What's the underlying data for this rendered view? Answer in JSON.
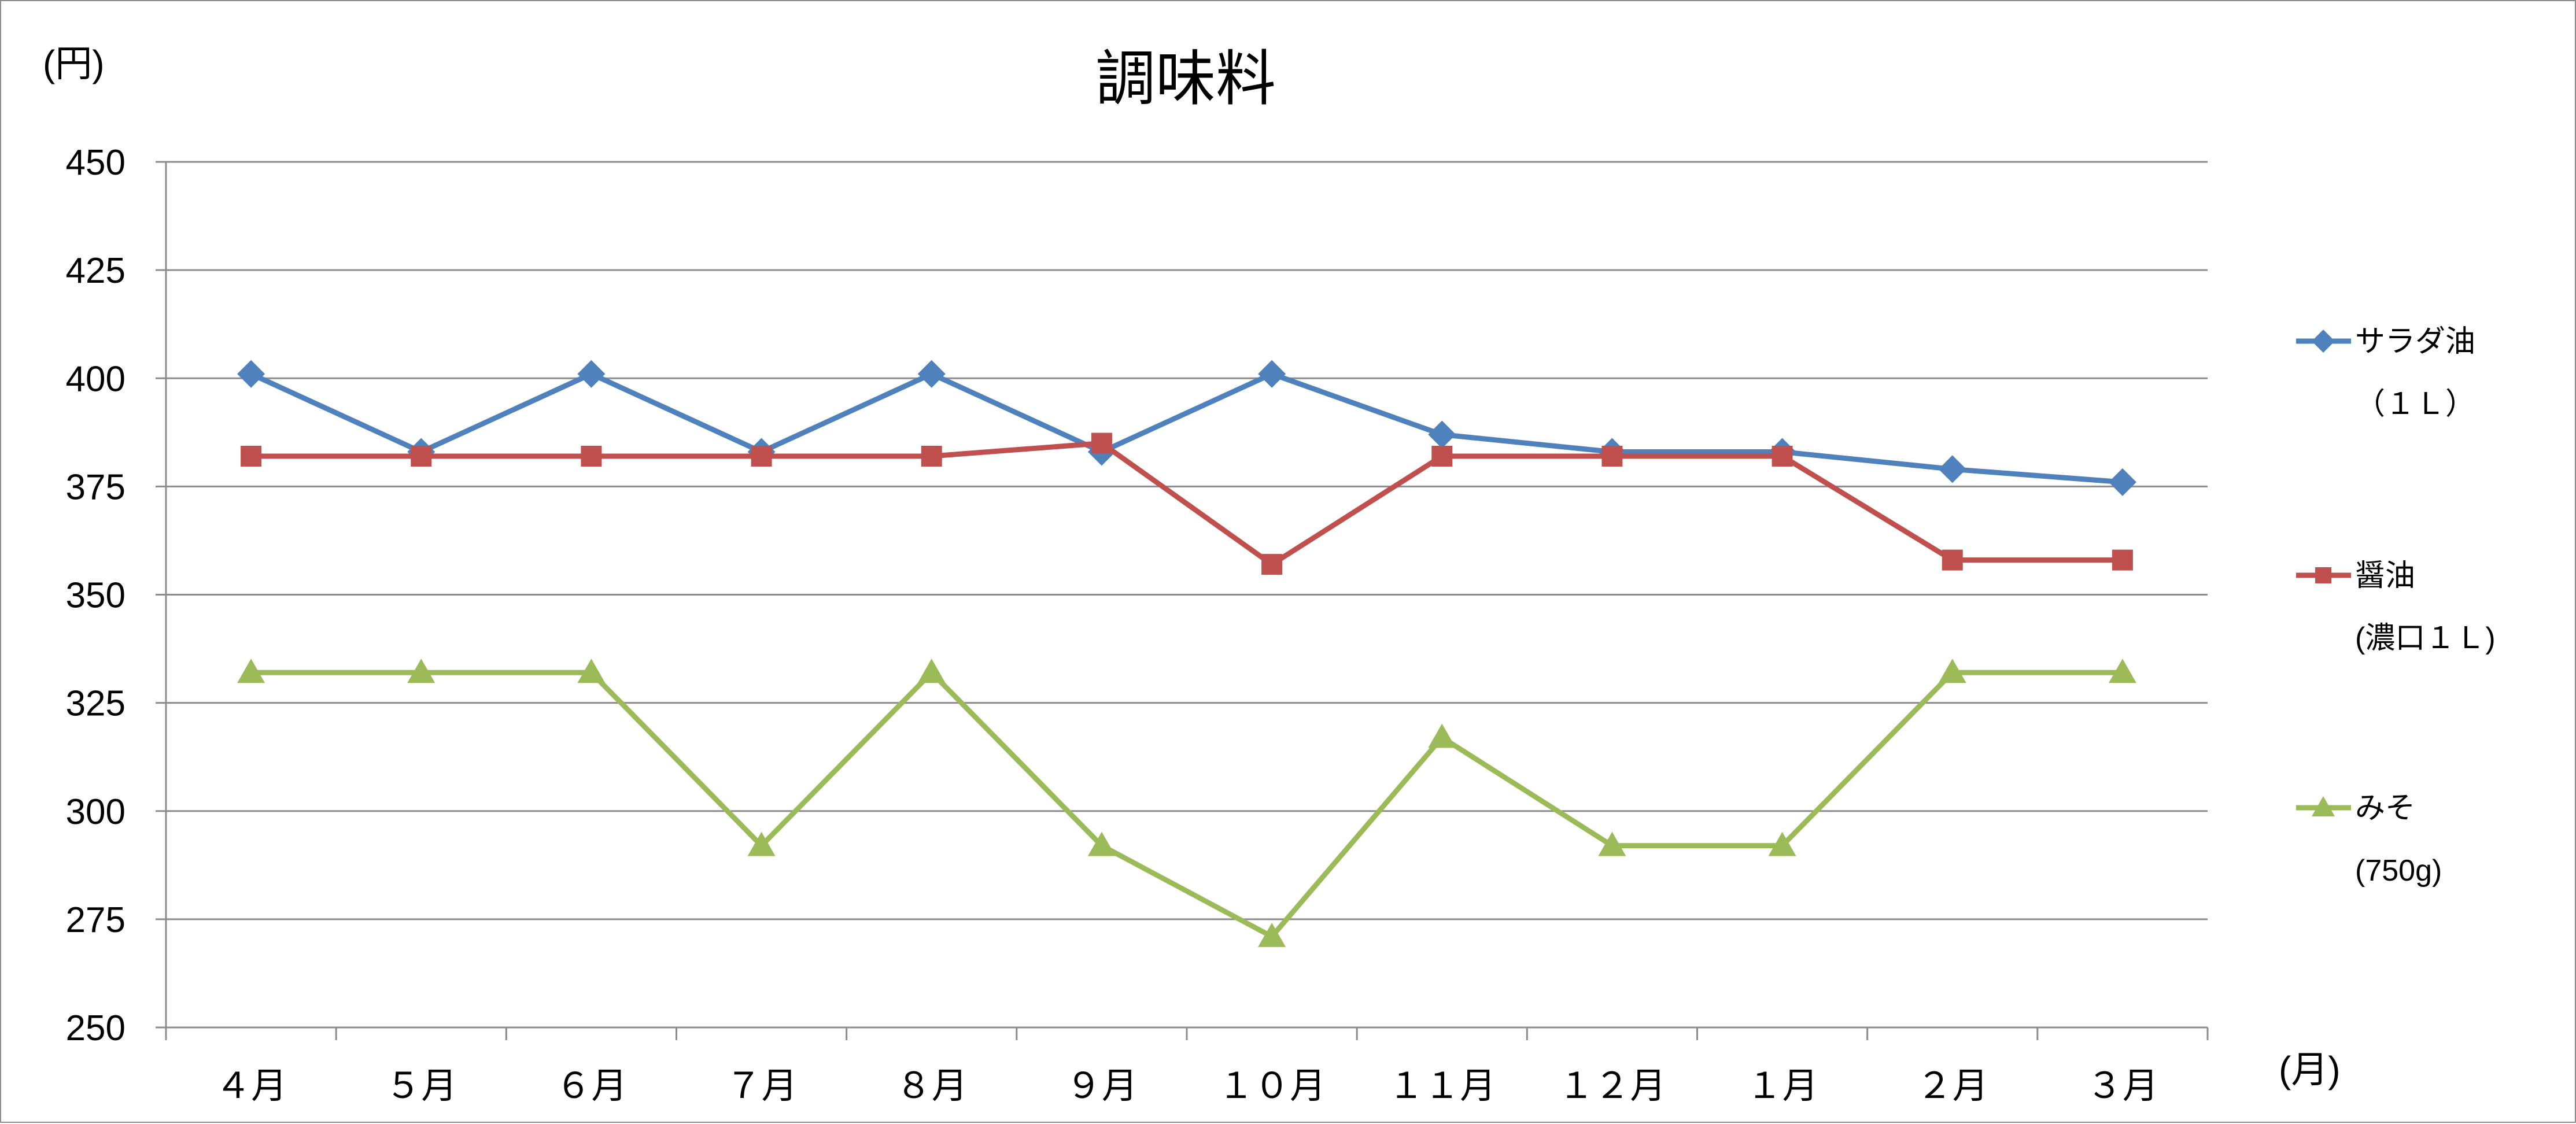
{
  "chart_data": {
    "type": "line",
    "title": "調味料",
    "ylabel": "(円)",
    "xlabel": "(月)",
    "categories": [
      "４月",
      "５月",
      "６月",
      "７月",
      "８月",
      "９月",
      "１０月",
      "１１月",
      "１２月",
      "１月",
      "２月",
      "３月"
    ],
    "ylim": [
      250,
      450
    ],
    "yticks": [
      250,
      275,
      300,
      325,
      350,
      375,
      400,
      425,
      450
    ],
    "grid": true,
    "legend_position": "right",
    "series": [
      {
        "name_lines": [
          "サラダ油",
          "（１Ｌ）"
        ],
        "color": "#4F81BD",
        "marker": "diamond",
        "values": [
          401,
          383,
          401,
          383,
          401,
          383,
          401,
          387,
          383,
          383,
          379,
          376
        ]
      },
      {
        "name_lines": [
          "醤油",
          "(濃口１Ｌ)"
        ],
        "color": "#C0504D",
        "marker": "square",
        "values": [
          382,
          382,
          382,
          382,
          382,
          385,
          357,
          382,
          382,
          382,
          358,
          358
        ]
      },
      {
        "name_lines": [
          "みそ",
          "(750g)"
        ],
        "color": "#9BBB59",
        "marker": "triangle",
        "values": [
          332,
          332,
          332,
          292,
          332,
          292,
          271,
          317,
          292,
          292,
          332,
          332
        ]
      }
    ]
  }
}
